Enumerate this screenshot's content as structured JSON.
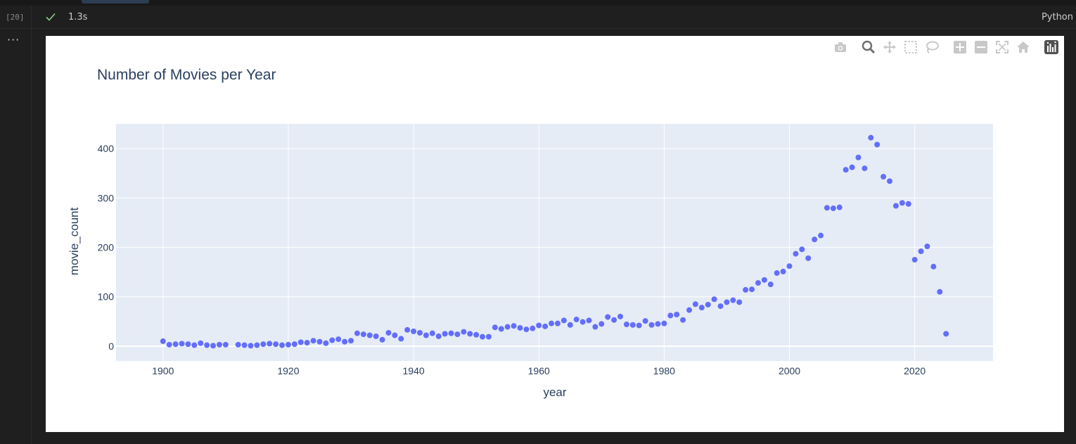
{
  "cell": {
    "execution_count": "[20]",
    "exec_time": "1.3s",
    "language": "Python",
    "more_label": "···"
  },
  "modebar": {
    "buttons": [
      "camera-icon",
      "zoom-icon",
      "pan-icon",
      "box-select-icon",
      "lasso-icon",
      "zoom-in-icon",
      "zoom-out-icon",
      "autoscale-icon",
      "reset-axes-icon",
      "plotly-logo-icon"
    ]
  },
  "colors": {
    "marker": "#636efa",
    "plot_bg": "#e5ecf6",
    "text": "#2a3f5f"
  },
  "chart_data": {
    "type": "scatter",
    "title": "Number of Movies per Year",
    "xlabel": "year",
    "ylabel": "movie_count",
    "xlim": [
      1892.5,
      2032.5
    ],
    "ylim": [
      -30,
      450
    ],
    "xticks": [
      1900,
      1920,
      1940,
      1960,
      1980,
      2000,
      2020
    ],
    "yticks": [
      0,
      100,
      200,
      300,
      400
    ],
    "grid": true,
    "x": [
      1900,
      1901,
      1902,
      1903,
      1904,
      1905,
      1906,
      1907,
      1908,
      1909,
      1910,
      1912,
      1913,
      1914,
      1915,
      1916,
      1917,
      1918,
      1919,
      1920,
      1921,
      1922,
      1923,
      1924,
      1925,
      1926,
      1927,
      1928,
      1929,
      1930,
      1931,
      1932,
      1933,
      1934,
      1935,
      1936,
      1937,
      1938,
      1939,
      1940,
      1941,
      1942,
      1943,
      1944,
      1945,
      1946,
      1947,
      1948,
      1949,
      1950,
      1951,
      1952,
      1953,
      1954,
      1955,
      1956,
      1957,
      1958,
      1959,
      1960,
      1961,
      1962,
      1963,
      1964,
      1965,
      1966,
      1967,
      1968,
      1969,
      1970,
      1971,
      1972,
      1973,
      1974,
      1975,
      1976,
      1977,
      1978,
      1979,
      1980,
      1981,
      1982,
      1983,
      1984,
      1985,
      1986,
      1987,
      1988,
      1989,
      1990,
      1991,
      1992,
      1993,
      1994,
      1995,
      1996,
      1997,
      1998,
      1999,
      2000,
      2001,
      2002,
      2003,
      2004,
      2005,
      2006,
      2007,
      2008,
      2009,
      2010,
      2011,
      2012,
      2013,
      2014,
      2015,
      2016,
      2017,
      2018,
      2019,
      2020,
      2021,
      2022,
      2023,
      2024,
      2025
    ],
    "y": [
      10,
      3,
      4,
      5,
      4,
      2,
      6,
      2,
      1,
      3,
      3,
      3,
      2,
      1,
      2,
      4,
      5,
      4,
      2,
      3,
      4,
      8,
      7,
      11,
      9,
      6,
      12,
      14,
      9,
      11,
      26,
      24,
      22,
      20,
      13,
      27,
      22,
      15,
      33,
      30,
      27,
      22,
      26,
      20,
      25,
      26,
      24,
      29,
      25,
      23,
      19,
      19,
      38,
      35,
      39,
      41,
      37,
      34,
      36,
      42,
      40,
      46,
      46,
      52,
      43,
      54,
      49,
      52,
      39,
      45,
      59,
      53,
      60,
      44,
      43,
      42,
      51,
      43,
      45,
      46,
      62,
      64,
      53,
      73,
      85,
      78,
      84,
      95,
      81,
      89,
      93,
      89,
      114,
      115,
      128,
      134,
      125,
      148,
      151,
      162,
      187,
      196,
      178,
      216,
      224,
      280,
      279,
      281,
      357,
      362,
      382,
      360,
      422,
      408,
      343,
      334,
      284,
      290,
      288,
      175,
      192,
      202,
      161,
      110,
      25
    ]
  }
}
